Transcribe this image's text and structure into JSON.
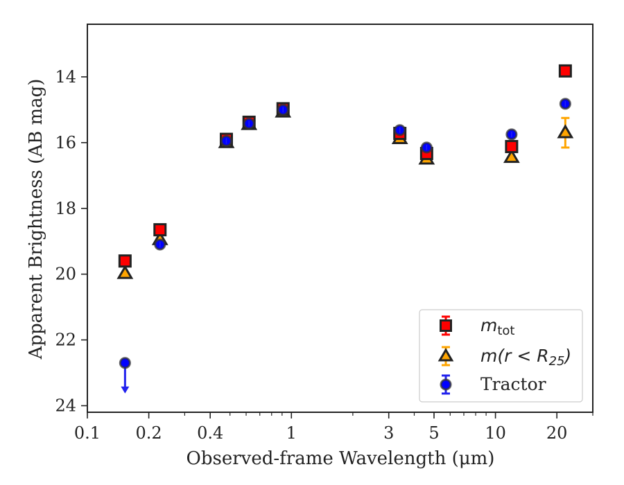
{
  "chart_data": {
    "type": "scatter",
    "xlabel": "Observed-frame Wavelength (μm)",
    "ylabel": "Apparent Brightness (AB mag)",
    "x_scale": "log",
    "y_inverted": true,
    "xlim": [
      0.1,
      30
    ],
    "ylim": [
      12.4,
      24.2
    ],
    "x_ticks": [
      0.1,
      0.2,
      0.4,
      1,
      3,
      5,
      10,
      20
    ],
    "x_tick_labels": [
      "0.1",
      "0.2",
      "0.4",
      "1",
      "3",
      "5",
      "10",
      "20"
    ],
    "y_ticks": [
      14,
      16,
      18,
      20,
      22,
      24
    ],
    "y_tick_labels": [
      "14",
      "16",
      "18",
      "20",
      "22",
      "24"
    ],
    "grid": false,
    "legend_position": "bottom-right",
    "legend": [
      {
        "series": "m_tot",
        "base": "m",
        "sub": "tot"
      },
      {
        "series": "m_r25",
        "text": "m(r < R",
        "sub": "25",
        "after": ")"
      },
      {
        "series": "tractor",
        "text": "Tractor"
      }
    ],
    "series": [
      {
        "key": "m_tot",
        "marker": "square",
        "face_color": "#ff0000",
        "edge_color": "#222222",
        "error_color": "#ff0000",
        "points": [
          {
            "x": 0.153,
            "y": 19.6
          },
          {
            "x": 0.227,
            "y": 18.65
          },
          {
            "x": 0.48,
            "y": 15.9
          },
          {
            "x": 0.62,
            "y": 15.38
          },
          {
            "x": 0.91,
            "y": 14.97
          },
          {
            "x": 3.4,
            "y": 15.72
          },
          {
            "x": 4.6,
            "y": 16.33
          },
          {
            "x": 12.0,
            "y": 16.12
          },
          {
            "x": 22.0,
            "y": 13.82
          }
        ]
      },
      {
        "key": "m_r25",
        "marker": "triangle",
        "face_color": "#ffa500",
        "edge_color": "#222222",
        "error_color": "#ffa500",
        "points": [
          {
            "x": 0.153,
            "y": 19.98
          },
          {
            "x": 0.227,
            "y": 18.95
          },
          {
            "x": 0.48,
            "y": 16.0
          },
          {
            "x": 0.62,
            "y": 15.45
          },
          {
            "x": 0.91,
            "y": 15.07
          },
          {
            "x": 3.4,
            "y": 15.88
          },
          {
            "x": 4.6,
            "y": 16.5
          },
          {
            "x": 12.0,
            "y": 16.45
          },
          {
            "x": 22.0,
            "y": 15.7,
            "err": 0.45
          }
        ]
      },
      {
        "key": "tractor",
        "marker": "circle",
        "face_color": "#0000ff",
        "edge_color": "#333333",
        "error_color": "#2222ee",
        "points": [
          {
            "x": 0.153,
            "y": 22.7,
            "upper_limit": true
          },
          {
            "x": 0.227,
            "y": 19.1
          },
          {
            "x": 0.48,
            "y": 15.95
          },
          {
            "x": 0.62,
            "y": 15.42
          },
          {
            "x": 0.91,
            "y": 15.0
          },
          {
            "x": 3.4,
            "y": 15.62
          },
          {
            "x": 4.6,
            "y": 16.15
          },
          {
            "x": 12.0,
            "y": 15.75
          },
          {
            "x": 22.0,
            "y": 14.82
          }
        ]
      }
    ]
  }
}
